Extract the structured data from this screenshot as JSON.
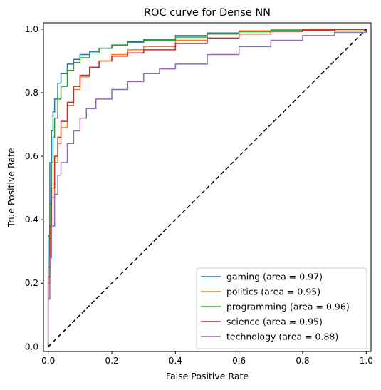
{
  "chart_data": {
    "type": "line",
    "title": "ROC curve for Dense NN",
    "xlabel": "False Positive Rate",
    "ylabel": "True Positive Rate",
    "xlim": [
      -0.015,
      1.015
    ],
    "ylim": [
      -0.015,
      1.02
    ],
    "x_ticks": [
      "0.0",
      "0.2",
      "0.4",
      "0.6",
      "0.8",
      "1.0"
    ],
    "y_ticks": [
      "0.0",
      "0.2",
      "0.4",
      "0.6",
      "0.8",
      "1.0"
    ],
    "grid": false,
    "legend_position": "lower-right",
    "series": [
      {
        "name": "gaming (area = 0.97)",
        "color": "#1f77b4",
        "x": [
          0.0,
          0.0,
          0.005,
          0.01,
          0.015,
          0.02,
          0.03,
          0.04,
          0.06,
          0.08,
          0.1,
          0.13,
          0.16,
          0.2,
          0.25,
          0.3,
          0.4,
          0.5,
          0.6,
          0.7,
          0.8,
          0.9,
          1.0
        ],
        "y": [
          0.0,
          0.35,
          0.58,
          0.68,
          0.74,
          0.78,
          0.83,
          0.86,
          0.89,
          0.905,
          0.92,
          0.93,
          0.94,
          0.95,
          0.96,
          0.968,
          0.98,
          0.988,
          0.993,
          0.996,
          0.998,
          0.999,
          1.0
        ]
      },
      {
        "name": "politics (area = 0.95)",
        "color": "#ff7f0e",
        "x": [
          0.0,
          0.0,
          0.005,
          0.01,
          0.02,
          0.03,
          0.04,
          0.06,
          0.08,
          0.1,
          0.13,
          0.16,
          0.2,
          0.25,
          0.3,
          0.4,
          0.5,
          0.6,
          0.7,
          0.8,
          0.9,
          1.0
        ],
        "y": [
          0.0,
          0.2,
          0.36,
          0.47,
          0.58,
          0.64,
          0.69,
          0.76,
          0.81,
          0.85,
          0.88,
          0.9,
          0.92,
          0.935,
          0.945,
          0.965,
          0.985,
          0.995,
          0.998,
          0.999,
          1.0,
          1.0
        ]
      },
      {
        "name": "programming (area = 0.96)",
        "color": "#2ca02c",
        "x": [
          0.0,
          0.0,
          0.005,
          0.01,
          0.015,
          0.02,
          0.03,
          0.04,
          0.06,
          0.08,
          0.1,
          0.13,
          0.16,
          0.2,
          0.25,
          0.3,
          0.4,
          0.5,
          0.6,
          0.7,
          0.8,
          0.9,
          1.0
        ],
        "y": [
          0.0,
          0.25,
          0.45,
          0.58,
          0.66,
          0.72,
          0.78,
          0.82,
          0.87,
          0.895,
          0.91,
          0.925,
          0.94,
          0.95,
          0.958,
          0.965,
          0.975,
          0.985,
          0.992,
          0.996,
          0.998,
          0.999,
          1.0
        ]
      },
      {
        "name": "science (area = 0.95)",
        "color": "#d62728",
        "x": [
          0.0,
          0.0,
          0.005,
          0.01,
          0.02,
          0.03,
          0.04,
          0.06,
          0.08,
          0.1,
          0.13,
          0.16,
          0.2,
          0.25,
          0.3,
          0.4,
          0.5,
          0.6,
          0.7,
          0.8,
          0.9,
          1.0
        ],
        "y": [
          0.0,
          0.22,
          0.38,
          0.5,
          0.6,
          0.66,
          0.71,
          0.77,
          0.82,
          0.855,
          0.88,
          0.9,
          0.915,
          0.925,
          0.935,
          0.955,
          0.972,
          0.985,
          0.993,
          0.997,
          0.999,
          1.0
        ]
      },
      {
        "name": "technology (area = 0.88)",
        "color": "#9467bd",
        "x": [
          0.0,
          0.0,
          0.005,
          0.01,
          0.02,
          0.03,
          0.04,
          0.06,
          0.08,
          0.1,
          0.12,
          0.15,
          0.2,
          0.25,
          0.3,
          0.35,
          0.4,
          0.5,
          0.6,
          0.7,
          0.8,
          0.9,
          1.0
        ],
        "y": [
          0.0,
          0.15,
          0.28,
          0.38,
          0.48,
          0.54,
          0.58,
          0.64,
          0.68,
          0.72,
          0.75,
          0.78,
          0.81,
          0.835,
          0.86,
          0.875,
          0.89,
          0.92,
          0.945,
          0.965,
          0.98,
          0.99,
          1.0
        ]
      }
    ],
    "reference_line": {
      "x": [
        0,
        1
      ],
      "y": [
        0,
        1
      ],
      "style": "dashed",
      "color": "#000000"
    }
  }
}
